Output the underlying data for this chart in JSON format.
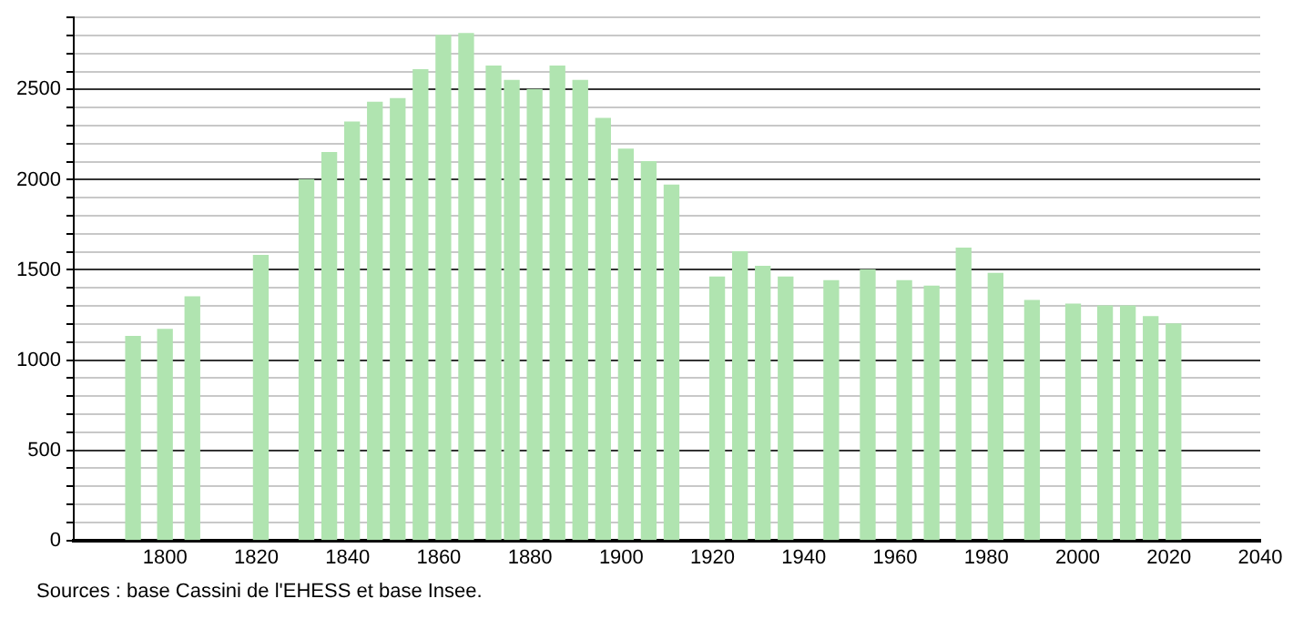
{
  "chart_data": {
    "type": "bar",
    "color": "#b0e4b0",
    "x": [
      1793,
      1800,
      1806,
      1821,
      1831,
      1836,
      1841,
      1846,
      1851,
      1856,
      1861,
      1866,
      1872,
      1876,
      1881,
      1886,
      1891,
      1896,
      1901,
      1906,
      1911,
      1921,
      1926,
      1931,
      1936,
      1946,
      1954,
      1962,
      1968,
      1975,
      1982,
      1990,
      1999,
      2006,
      2011,
      2016,
      2021
    ],
    "values": [
      1130,
      1170,
      1350,
      1580,
      2000,
      2150,
      2320,
      2430,
      2450,
      2610,
      2800,
      2810,
      2630,
      2550,
      2500,
      2630,
      2550,
      2340,
      2170,
      2100,
      1970,
      1460,
      1600,
      1520,
      1460,
      1440,
      1500,
      1440,
      1410,
      1620,
      1480,
      1330,
      1310,
      1300,
      1300,
      1240,
      1200
    ],
    "xlim": [
      1780,
      2040
    ],
    "xticks": [
      1800,
      1820,
      1840,
      1860,
      1880,
      1900,
      1920,
      1940,
      1960,
      1980,
      2000,
      2020,
      2040
    ],
    "ylim": [
      0,
      2900
    ],
    "yticks": [
      0,
      {
        "value": 100,
        "label": null
      },
      {
        "value": 200,
        "label": null
      },
      {
        "value": 300,
        "label": null
      },
      {
        "value": 400,
        "label": null
      },
      500,
      {
        "value": 600,
        "label": null
      },
      {
        "value": 700,
        "label": null
      },
      {
        "value": 800,
        "label": null
      },
      {
        "value": 900,
        "label": null
      },
      1000,
      {
        "value": 1100,
        "label": null
      },
      {
        "value": 1200,
        "label": null
      },
      {
        "value": 1300,
        "label": null
      },
      {
        "value": 1400,
        "label": null
      },
      1500,
      {
        "value": 1600,
        "label": null
      },
      {
        "value": 1700,
        "label": null
      },
      {
        "value": 1800,
        "label": null
      },
      {
        "value": 1900,
        "label": null
      },
      2000,
      {
        "value": 2100,
        "label": null
      },
      {
        "value": 2200,
        "label": null
      },
      {
        "value": 2300,
        "label": null
      },
      {
        "value": 2400,
        "label": null
      },
      2500,
      {
        "value": 2600,
        "label": null
      },
      {
        "value": 2700,
        "label": null
      },
      {
        "value": 2800,
        "label": null
      },
      {
        "value": 2900,
        "label": null
      }
    ],
    "grid": "y",
    "annotations": [
      "Sources : base Cassini de l'EHESS et base Insee."
    ]
  }
}
